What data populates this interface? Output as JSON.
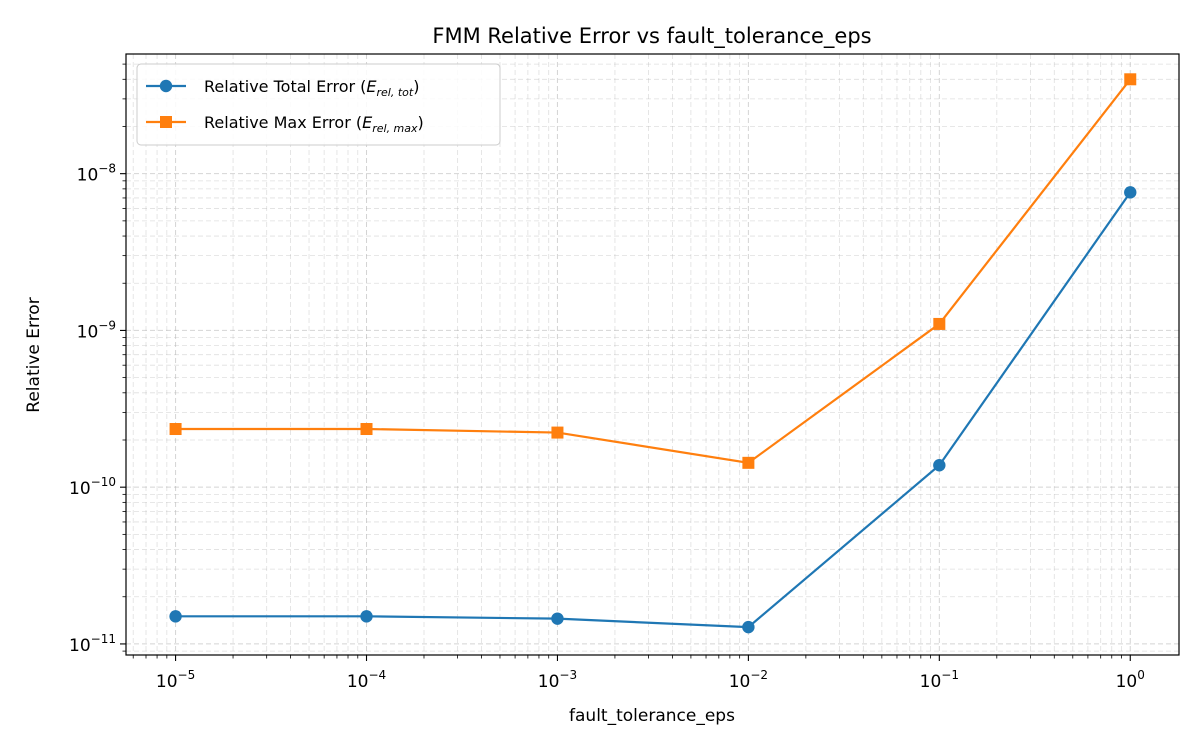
{
  "chart_data": {
    "type": "line",
    "title": "FMM Relative Error vs fault_tolerance_eps",
    "xlabel": "fault_tolerance_eps",
    "ylabel": "Relative Error",
    "xscale": "log",
    "yscale": "log",
    "xlim": [
      5.5e-06,
      1.8
    ],
    "ylim": [
      8.5e-12,
      5.8e-08
    ],
    "grid": true,
    "legend_position": "top-left",
    "x": [
      1e-05,
      0.0001,
      0.001,
      0.01,
      0.1,
      1
    ],
    "x_tick_labels": [
      {
        "base": "10",
        "exp": "−5",
        "value": 1e-05
      },
      {
        "base": "10",
        "exp": "−4",
        "value": 0.0001
      },
      {
        "base": "10",
        "exp": "−3",
        "value": 0.001
      },
      {
        "base": "10",
        "exp": "−2",
        "value": 0.01
      },
      {
        "base": "10",
        "exp": "−1",
        "value": 0.1
      },
      {
        "base": "10",
        "exp": "0",
        "value": 1
      }
    ],
    "y_tick_labels": [
      {
        "base": "10",
        "exp": "−11",
        "value": 1e-11
      },
      {
        "base": "10",
        "exp": "−10",
        "value": 1e-10
      },
      {
        "base": "10",
        "exp": "−9",
        "value": 1e-09
      },
      {
        "base": "10",
        "exp": "−8",
        "value": 1e-08
      }
    ],
    "series": [
      {
        "name": "Relative Total Error",
        "legend_main": "Relative Total Error (",
        "legend_sym": "E",
        "legend_sub": "rel, tot",
        "legend_close": ")",
        "color": "#1f77b4",
        "marker": "circle",
        "values": [
          1.5e-11,
          1.5e-11,
          1.45e-11,
          1.28e-11,
          1.38e-10,
          7.6e-09
        ]
      },
      {
        "name": "Relative Max Error",
        "legend_main": "Relative Max Error (",
        "legend_sym": "E",
        "legend_sub": "rel, max",
        "legend_close": ")",
        "color": "#ff7f0e",
        "marker": "square",
        "values": [
          2.35e-10,
          2.35e-10,
          2.23e-10,
          1.43e-10,
          1.1e-09,
          4e-08
        ]
      }
    ]
  }
}
